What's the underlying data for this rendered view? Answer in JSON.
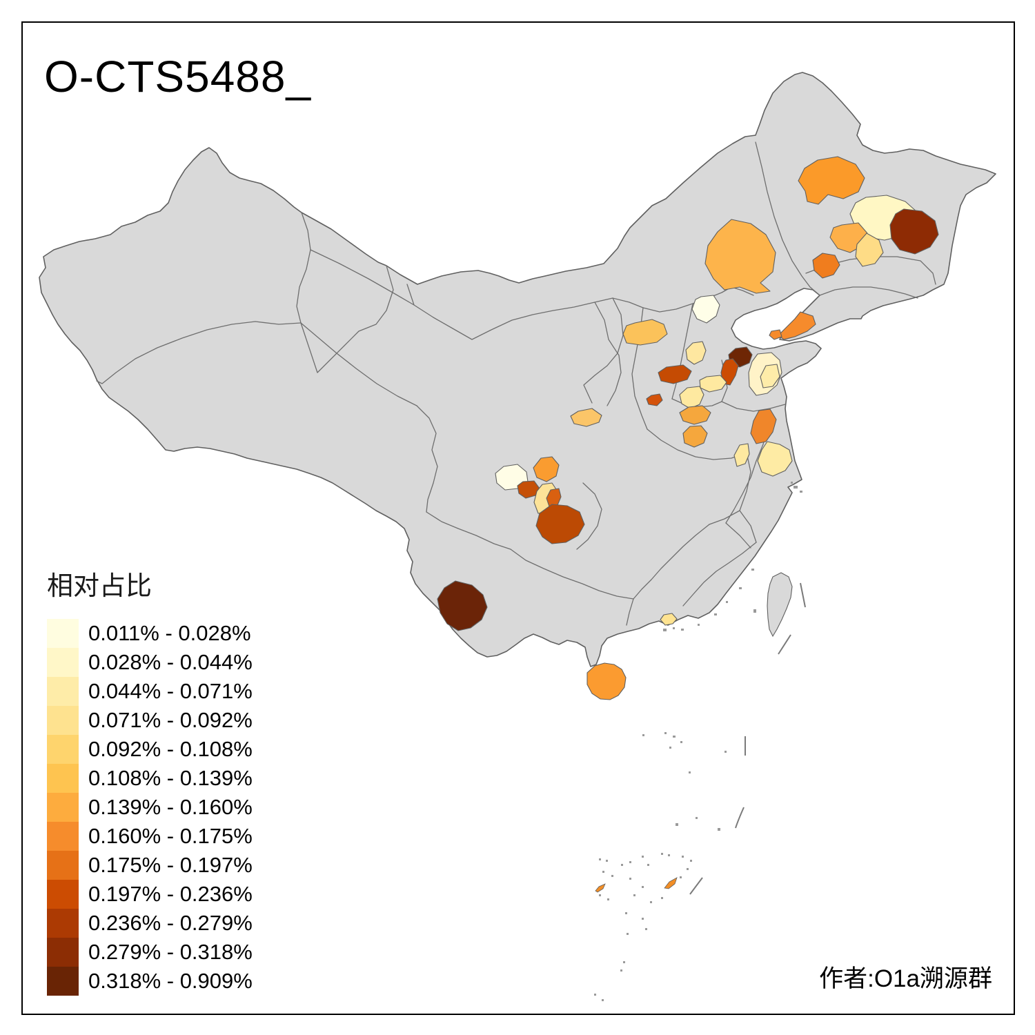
{
  "title": "O-CTS5488_",
  "attribution": "作者:O1a溯源群",
  "legend": {
    "title": "相对占比",
    "bins": [
      {
        "label": "0.011% - 0.028%",
        "color": "#FFFDE0"
      },
      {
        "label": "0.028% - 0.044%",
        "color": "#FFF7C8"
      },
      {
        "label": "0.044% - 0.071%",
        "color": "#FEECA8"
      },
      {
        "label": "0.071% - 0.092%",
        "color": "#FEE28F"
      },
      {
        "label": "0.092% - 0.108%",
        "color": "#FED46D"
      },
      {
        "label": "0.108% - 0.139%",
        "color": "#FEC450"
      },
      {
        "label": "0.139% - 0.160%",
        "color": "#FDAC3E"
      },
      {
        "label": "0.160% - 0.175%",
        "color": "#F68C2C"
      },
      {
        "label": "0.175% - 0.197%",
        "color": "#E67117"
      },
      {
        "label": "0.197% - 0.236%",
        "color": "#CC4C02"
      },
      {
        "label": "0.236% - 0.279%",
        "color": "#AC3A03"
      },
      {
        "label": "0.279% - 0.318%",
        "color": "#8C2D04"
      },
      {
        "label": "0.318% - 0.909%",
        "color": "#692405"
      }
    ]
  },
  "map": {
    "background": "#FFFFFF",
    "land_color": "#D9D9D9",
    "border_color": "#6B6B6B",
    "frame_color": "#000000",
    "regions": [
      {
        "id": "inner-mongolia-east",
        "color": "#FDB44B"
      },
      {
        "id": "qiqihar",
        "color": "#FB9A29"
      },
      {
        "id": "suihua",
        "color": "#FFF7C4"
      },
      {
        "id": "harbin",
        "color": "#8E2B04"
      },
      {
        "id": "songyuan",
        "color": "#FDB04A"
      },
      {
        "id": "changchun",
        "color": "#FEDC86"
      },
      {
        "id": "shenyang",
        "color": "#F07D1E"
      },
      {
        "id": "dalian",
        "color": "#F68B2C"
      },
      {
        "id": "yingkou",
        "color": "#F68B2C"
      },
      {
        "id": "beijing",
        "color": "#FFFEE8"
      },
      {
        "id": "hetao",
        "color": "#FBC25A"
      },
      {
        "id": "shijiazhuang",
        "color": "#FEE7A0"
      },
      {
        "id": "north-shandong-dark",
        "color": "#6E2605"
      },
      {
        "id": "jinan-strip",
        "color": "#CC4C02"
      },
      {
        "id": "taiyuan",
        "color": "#C54B03"
      },
      {
        "id": "linfen",
        "color": "#D4520A"
      },
      {
        "id": "south-hebei",
        "color": "#FEE9A0"
      },
      {
        "id": "shandong-pale",
        "color": "#FFF3C8"
      },
      {
        "id": "shandong-patch",
        "color": "#FEECA9"
      },
      {
        "id": "north-jiangsu",
        "color": "#F0862A"
      },
      {
        "id": "south-jiangsu",
        "color": "#FEEBA4"
      },
      {
        "id": "north-anhui",
        "color": "#FEE9A0"
      },
      {
        "id": "yanan",
        "color": "#FBC568"
      },
      {
        "id": "henan-pale",
        "color": "#FEE9A0"
      },
      {
        "id": "henan-orange-a",
        "color": "#F5A73D"
      },
      {
        "id": "henan-orange-b",
        "color": "#F5A73D"
      },
      {
        "id": "chengdu",
        "color": "#FFFDE6"
      },
      {
        "id": "mianyang",
        "color": "#FA9C30"
      },
      {
        "id": "yaan",
        "color": "#C55008"
      },
      {
        "id": "suining",
        "color": "#FDE398"
      },
      {
        "id": "neijiang",
        "color": "#D96010"
      },
      {
        "id": "chongqing",
        "color": "#BC4A04"
      },
      {
        "id": "puer",
        "color": "#6B2408"
      },
      {
        "id": "pearl-delta",
        "color": "#FEE391"
      },
      {
        "id": "hainan",
        "color": "#FB9B30"
      },
      {
        "id": "sansha-west",
        "color": "#F28E26"
      },
      {
        "id": "sansha-east",
        "color": "#F28E26"
      }
    ]
  }
}
